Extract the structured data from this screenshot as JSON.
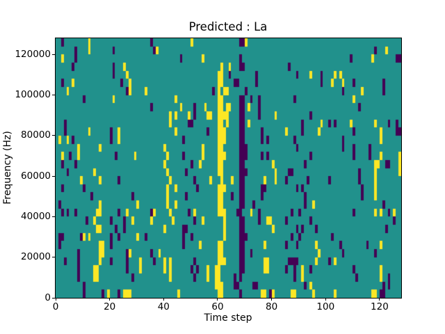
{
  "chart_data": {
    "type": "heatmap",
    "title": "Predicted : La",
    "xlabel": "Time step",
    "ylabel": "Frequency (Hz)",
    "x_ticks": [
      0,
      20,
      40,
      60,
      80,
      100,
      120
    ],
    "y_ticks": [
      0,
      20000,
      40000,
      60000,
      80000,
      100000,
      120000
    ],
    "xlim": [
      0,
      128
    ],
    "ylim": [
      0,
      128000
    ],
    "n_cols": 128,
    "n_rows": 32,
    "legend": "none",
    "colors": {
      "background_mid": "#21918c",
      "high_yellow": "#fde725",
      "low_purple": "#440154",
      "axes_text": "#000000",
      "figure_background": "#ffffff"
    },
    "rows_top_to_bottom": [
      {
        "y": [
          12,
          50,
          70
        ],
        "p": [
          2,
          35,
          68,
          69
        ]
      },
      {
        "y": [
          12,
          37,
          122
        ],
        "p": [
          7,
          21,
          36,
          118
        ]
      },
      {
        "y": [
          2,
          54,
          117
        ],
        "p": [
          7,
          46,
          68,
          109,
          126,
          127
        ]
      },
      {
        "y": [
          25,
          61,
          64
        ],
        "p": [
          6,
          21,
          68,
          69,
          86
        ]
      },
      {
        "y": [
          26,
          60,
          61,
          94,
          103,
          105
        ],
        "p": [
          21,
          64,
          74,
          89,
          98
        ]
      },
      {
        "y": [
          6,
          27,
          60,
          61,
          102,
          106
        ],
        "p": [
          2,
          24,
          66,
          67,
          74,
          98,
          110,
          121
        ]
      },
      {
        "y": [
          4,
          27,
          33,
          60,
          62,
          63,
          113
        ],
        "p": [
          26,
          58,
          70,
          106,
          121
        ]
      },
      {
        "y": [
          21,
          44,
          60,
          61,
          110
        ],
        "p": [
          10,
          68,
          69,
          72,
          75,
          88
        ]
      },
      {
        "y": [
          46,
          55,
          60,
          61,
          63,
          64,
          71
        ],
        "p": [
          35,
          51,
          68,
          69,
          75,
          112
        ]
      },
      {
        "y": [
          42,
          44,
          49,
          56,
          57,
          60,
          61,
          62,
          63,
          81
        ],
        "p": [
          51,
          68,
          69,
          75,
          94
        ]
      },
      {
        "y": [
          42,
          60,
          61,
          63,
          71,
          98,
          109,
          118
        ],
        "p": [
          3,
          49,
          50,
          68,
          69,
          91,
          101,
          103,
          123,
          126
        ]
      },
      {
        "y": [
          12,
          23,
          44,
          60,
          61,
          62,
          85,
          97,
          120
        ],
        "p": [
          3,
          20,
          56,
          68,
          69,
          76,
          91,
          110,
          126,
          127
        ]
      },
      {
        "y": [
          1,
          4,
          23,
          60,
          61,
          62,
          120
        ],
        "p": [
          6,
          20,
          47,
          68,
          69,
          76,
          78,
          88,
          106
        ]
      },
      {
        "y": [
          8,
          16,
          40,
          54,
          60,
          61
        ],
        "p": [
          68,
          69,
          70,
          89,
          106,
          110,
          116
        ]
      },
      {
        "y": [
          2,
          8,
          29,
          41,
          54,
          60,
          61,
          62,
          120,
          127
        ],
        "p": [
          5,
          22,
          47,
          68,
          69,
          70,
          76,
          78,
          94,
          110,
          116
        ]
      },
      {
        "y": [
          40,
          53,
          60,
          61,
          80,
          118,
          119,
          127
        ],
        "p": [
          2,
          7,
          50,
          68,
          69,
          92,
          122,
          123
        ]
      },
      {
        "y": [
          14,
          41,
          60,
          61,
          81,
          118,
          127
        ],
        "p": [
          4,
          48,
          68,
          69,
          70,
          86,
          87,
          112
        ]
      },
      {
        "y": [
          9,
          16,
          42,
          57,
          61,
          65,
          77,
          81,
          118
        ],
        "p": [
          23,
          51,
          68,
          69,
          85,
          93,
          101,
          112
        ]
      },
      {
        "y": [
          41,
          44,
          60,
          61,
          62,
          118
        ],
        "p": [
          2,
          10,
          52,
          68,
          69,
          76,
          77,
          89,
          91,
          113
        ]
      },
      {
        "y": [
          41,
          60,
          61,
          118
        ],
        "p": [
          13,
          28,
          48,
          65,
          68,
          69,
          76,
          92,
          113
        ]
      },
      {
        "y": [
          16,
          30,
          41,
          44,
          60,
          61,
          95
        ],
        "p": [
          1,
          68,
          69,
          73,
          92,
          121
        ]
      },
      {
        "y": [
          15,
          16,
          26,
          36,
          42,
          51,
          60,
          61,
          62,
          72,
          118,
          120,
          125
        ],
        "p": [
          2,
          4,
          7,
          23,
          35,
          49,
          67,
          68,
          75,
          87,
          90,
          110,
          123
        ]
      },
      {
        "y": [
          14,
          28,
          35,
          43,
          54,
          62,
          78,
          79
        ],
        "p": [
          11,
          20,
          25,
          51,
          68,
          69,
          75,
          85,
          94,
          125
        ]
      },
      {
        "y": [
          15,
          16,
          40,
          62,
          80
        ],
        "p": [
          22,
          25,
          47,
          48,
          68,
          69,
          89,
          91,
          96,
          122
        ]
      },
      {
        "y": [
          10,
          12,
          30,
          62
        ],
        "p": [
          1,
          2,
          9,
          20,
          23,
          33,
          47,
          50,
          68,
          69,
          70,
          87,
          90,
          102
        ]
      },
      {
        "y": [
          16,
          17,
          53,
          60,
          61,
          77,
          96,
          120
        ],
        "p": [
          1,
          20,
          47,
          68,
          69,
          85,
          89,
          105,
          115
        ]
      },
      {
        "y": [
          16,
          17,
          27,
          38,
          60,
          61,
          97
        ],
        "p": [
          8,
          26,
          35,
          68,
          69,
          72,
          106,
          118
        ]
      },
      {
        "y": [
          16,
          31,
          40,
          42,
          60,
          61,
          62,
          77,
          78,
          96,
          103
        ],
        "p": [
          3,
          8,
          20,
          26,
          36,
          51,
          68,
          69,
          86,
          87,
          88,
          89,
          101
        ]
      },
      {
        "y": [
          14,
          15,
          31,
          40,
          42,
          56,
          59,
          60,
          77,
          78,
          91,
          120
        ],
        "p": [
          8,
          26,
          50,
          52,
          68,
          69,
          85,
          88,
          94,
          110
        ]
      },
      {
        "y": [
          14,
          15,
          42,
          56,
          59,
          60,
          91,
          120
        ],
        "p": [
          8,
          28,
          51,
          66,
          68,
          88,
          111,
          123
        ]
      },
      {
        "y": [
          59,
          60,
          61,
          94
        ],
        "p": [
          10,
          66,
          67,
          73,
          74,
          92,
          121,
          123
        ]
      },
      {
        "y": [
          19,
          25,
          26,
          27,
          45,
          60,
          61,
          76,
          77,
          80,
          87,
          88,
          95,
          103,
          117,
          118
        ],
        "p": [
          10,
          17,
          23,
          68,
          79,
          120,
          121
        ]
      }
    ]
  }
}
